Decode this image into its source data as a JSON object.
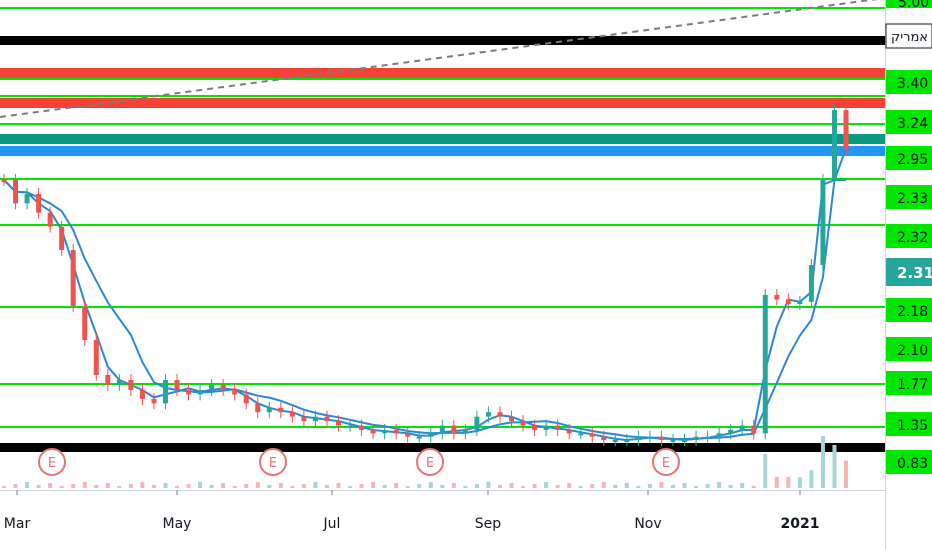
{
  "chart_data": {
    "type": "candlestick",
    "symbol_title_partial": "לר אמריק",
    "x_ticks": [
      "Mar",
      "May",
      "Jul",
      "Sep",
      "Nov",
      "2021"
    ],
    "y_tick_labels": [
      "5.00",
      "3.40",
      "3.24",
      "2.95",
      "2.33",
      "2.32",
      "2.18",
      "2.10",
      "1.77",
      "1.35",
      "0.83"
    ],
    "current_price": "2.31",
    "colors": {
      "up": "#26a69a",
      "down": "#ef5350",
      "horizontal_green": "#00e600",
      "horizontal_red": "#f44336",
      "horizontal_black": "#000000",
      "horizontal_teal": "#089981",
      "horizontal_blue": "#2196f3",
      "ma_line": "#2a88d8",
      "trendline": "#787b86",
      "price_label_bg": "#00e600",
      "current_label_bg": "#26a69a",
      "earnings_marker": "#e57373"
    },
    "earnings_marker_label": "E",
    "earnings_markers_months": [
      "Mar",
      "Jun",
      "Aug",
      "Nov"
    ],
    "series_close_approx": [
      1.55,
      1.5,
      1.52,
      1.48,
      1.45,
      1.4,
      1.2,
      1.05,
      0.98,
      0.96,
      0.97,
      0.95,
      0.93,
      0.92,
      0.97,
      0.95,
      0.94,
      0.95,
      0.96,
      0.95,
      0.94,
      0.92,
      0.9,
      0.91,
      0.9,
      0.89,
      0.88,
      0.89,
      0.88,
      0.87,
      0.87,
      0.86,
      0.85,
      0.86,
      0.85,
      0.84,
      0.84,
      0.85,
      0.87,
      0.85,
      0.86,
      0.89,
      0.9,
      0.89,
      0.88,
      0.87,
      0.86,
      0.87,
      0.86,
      0.85,
      0.85,
      0.84,
      0.83,
      0.83,
      0.83,
      0.84,
      0.84,
      0.83,
      0.83,
      0.83,
      0.84,
      0.84,
      0.85,
      0.86,
      0.87,
      0.85,
      1.25,
      1.23,
      1.21,
      1.22,
      1.35,
      2.05,
      2.6,
      2.31
    ]
  }
}
